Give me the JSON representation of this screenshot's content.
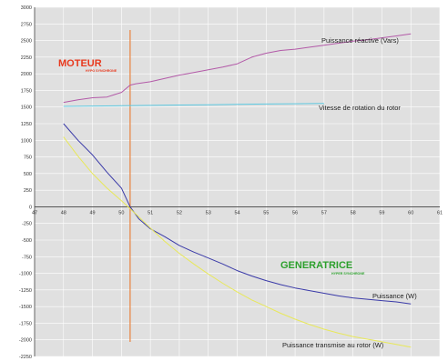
{
  "chart_data": {
    "type": "line",
    "xlim": [
      47,
      61
    ],
    "ylim": [
      -2250,
      3000
    ],
    "x_ticks": [
      "47",
      "48",
      "49",
      "50",
      "51",
      "52",
      "53",
      "54",
      "55",
      "56",
      "57",
      "58",
      "59",
      "60",
      "61"
    ],
    "y_ticks": [
      3000,
      2750,
      2500,
      2250,
      2000,
      1750,
      1500,
      1250,
      1000,
      750,
      500,
      250,
      0,
      -250,
      -500,
      -750,
      -1000,
      -1250,
      -1500,
      -1750,
      -2000,
      -2250
    ],
    "grid": true,
    "background": "#e0e0e0",
    "synchronous_x": 50.3,
    "series": [
      {
        "name": "Puissance réactive (Vars)",
        "color": "#b35aa8",
        "x": [
          48,
          48.5,
          49,
          49.5,
          50,
          50.3,
          50.5,
          51,
          51.5,
          52,
          52.5,
          53,
          53.5,
          54,
          54.5,
          55,
          55.5,
          56,
          56.5,
          57,
          57.5,
          58,
          58.5,
          59,
          59.5,
          60
        ],
        "y": [
          1570,
          1610,
          1640,
          1650,
          1720,
          1830,
          1850,
          1880,
          1930,
          1980,
          2020,
          2060,
          2100,
          2150,
          2250,
          2310,
          2350,
          2370,
          2400,
          2430,
          2460,
          2490,
          2510,
          2540,
          2570,
          2600
        ]
      },
      {
        "name": "Vitesse de rotation du rotor",
        "color": "#5cc8e0",
        "x": [
          48,
          49,
          50,
          51,
          52,
          53,
          54,
          55,
          56,
          57
        ],
        "y": [
          1510,
          1515,
          1520,
          1525,
          1530,
          1535,
          1540,
          1545,
          1550,
          1555
        ]
      },
      {
        "name": "Puissance (W)",
        "color": "#3a3aa8",
        "x": [
          48,
          48.5,
          49,
          49.5,
          50,
          50.3,
          50.6,
          51,
          51.5,
          52,
          52.5,
          53,
          53.5,
          54,
          54.5,
          55,
          55.5,
          56,
          56.5,
          57,
          57.5,
          58,
          58.5,
          59,
          59.5,
          60
        ],
        "y": [
          1250,
          1000,
          780,
          520,
          280,
          0,
          -180,
          -330,
          -450,
          -580,
          -680,
          -770,
          -860,
          -960,
          -1040,
          -1110,
          -1170,
          -1220,
          -1260,
          -1300,
          -1340,
          -1370,
          -1390,
          -1410,
          -1430,
          -1460
        ]
      },
      {
        "name": "Puissance transmise au rotor (W)",
        "color": "#e8e85a",
        "x": [
          48,
          48.5,
          49,
          49.5,
          50,
          50.5,
          51,
          51.5,
          52,
          52.5,
          53,
          53.5,
          54,
          54.5,
          55,
          55.5,
          56,
          56.5,
          57,
          57.5,
          58,
          58.5,
          59,
          59.5,
          60
        ],
        "y": [
          1050,
          760,
          500,
          280,
          90,
          -110,
          -320,
          -520,
          -700,
          -860,
          -1010,
          -1150,
          -1280,
          -1400,
          -1500,
          -1600,
          -1690,
          -1770,
          -1840,
          -1900,
          -1950,
          -1990,
          -2030,
          -2070,
          -2110
        ]
      }
    ]
  },
  "annotations": {
    "moteur": "MOTEUR",
    "moteur_sub": "HYPO SYNCHRONE",
    "generatrice": "GENERATRICE",
    "generatrice_sub": "HYPER SYNCHRONE"
  },
  "colors": {
    "moteur": "#e8391e",
    "generatrice": "#2ca02c",
    "sync_line": "#e8823c",
    "axis": "#404040",
    "grid": "#ffffff"
  }
}
